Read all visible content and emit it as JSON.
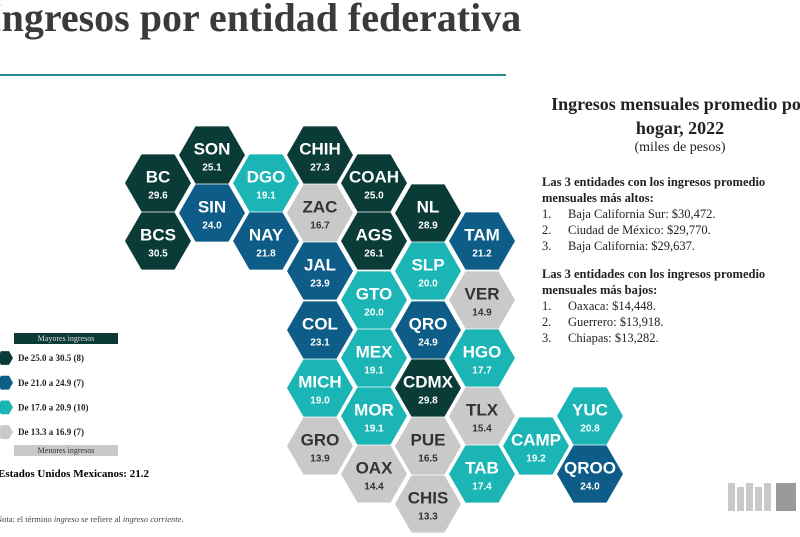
{
  "title": "Ingresos por entidad federativa",
  "tiles": [
    {
      "label": "SON",
      "value": "25.1",
      "color": "#0b3b36"
    },
    {
      "label": "CHIH",
      "value": "27.3",
      "color": "#0b3b36"
    },
    {
      "label": "BC",
      "value": "29.6",
      "color": "#0b3b36"
    },
    {
      "label": "DGO",
      "value": "19.1",
      "color": "#1bb5b5"
    },
    {
      "label": "COAH",
      "value": "25.0",
      "color": "#0b3b36"
    },
    {
      "label": "SIN",
      "value": "24.0",
      "color": "#0e5c88"
    },
    {
      "label": "ZAC",
      "value": "16.7",
      "color": "#c9c9c9"
    },
    {
      "label": "NL",
      "value": "28.9",
      "color": "#0b3b36"
    },
    {
      "label": "BCS",
      "value": "30.5",
      "color": "#0b3b36"
    },
    {
      "label": "NAY",
      "value": "21.8",
      "color": "#0e5c88"
    },
    {
      "label": "AGS",
      "value": "26.1",
      "color": "#0b3b36"
    },
    {
      "label": "TAM",
      "value": "21.2",
      "color": "#0e5c88"
    },
    {
      "label": "JAL",
      "value": "23.9",
      "color": "#0e5c88"
    },
    {
      "label": "SLP",
      "value": "20.0",
      "color": "#1bb5b5"
    },
    {
      "label": "GTO",
      "value": "20.0",
      "color": "#1bb5b5"
    },
    {
      "label": "VER",
      "value": "14.9",
      "color": "#c9c9c9"
    },
    {
      "label": "COL",
      "value": "23.1",
      "color": "#0e5c88"
    },
    {
      "label": "QRO",
      "value": "24.9",
      "color": "#0e5c88"
    },
    {
      "label": "MEX",
      "value": "19.1",
      "color": "#1bb5b5"
    },
    {
      "label": "HGO",
      "value": "17.7",
      "color": "#1bb5b5"
    },
    {
      "label": "MICH",
      "value": "19.0",
      "color": "#1bb5b5"
    },
    {
      "label": "CDMX",
      "value": "29.8",
      "color": "#0b3b36"
    },
    {
      "label": "MOR",
      "value": "19.1",
      "color": "#1bb5b5"
    },
    {
      "label": "TLX",
      "value": "15.4",
      "color": "#c9c9c9"
    },
    {
      "label": "YUC",
      "value": "20.8",
      "color": "#1bb5b5"
    },
    {
      "label": "GRO",
      "value": "13.9",
      "color": "#c9c9c9"
    },
    {
      "label": "PUE",
      "value": "16.5",
      "color": "#c9c9c9"
    },
    {
      "label": "CAMP",
      "value": "19.2",
      "color": "#1bb5b5"
    },
    {
      "label": "OAX",
      "value": "14.4",
      "color": "#c9c9c9"
    },
    {
      "label": "TAB",
      "value": "17.4",
      "color": "#1bb5b5"
    },
    {
      "label": "QROO",
      "value": "24.0",
      "color": "#0e5c88"
    },
    {
      "label": "CHIS",
      "value": "13.3",
      "color": "#c9c9c9"
    }
  ],
  "legend": {
    "top": "Mayores ingresos",
    "bottom": "Menores ingresos",
    "items": [
      {
        "label": "De 25.0 a 30.5 (8)",
        "color": "#0b3b36"
      },
      {
        "label": "De 21.0 a 24.9 (7)",
        "color": "#0e5c88"
      },
      {
        "label": "De 17.0 a 20.9 (10)",
        "color": "#1bb5b5"
      },
      {
        "label": "De 13.3 a 16.9 (7)",
        "color": "#c9c9c9"
      }
    ]
  },
  "national": "Estados Unidos Mexicanos: 21.2",
  "note": [
    "Nota: el término ",
    "ingreso",
    " se refiere al ",
    "ingreso corriente",
    "."
  ],
  "panel": {
    "title_lines": [
      "Ingresos mensuales promedio por",
      "hogar, 2022"
    ],
    "subtitle": "(miles de pesos)",
    "sections": [
      {
        "heading_lines": [
          "Las 3 entidades con los ingresos promedio",
          "mensuales más altos:"
        ],
        "items": [
          {
            "num": "1.",
            "text": "Baja California Sur: $30,472."
          },
          {
            "num": "2.",
            "text": "Ciudad de México: $29,770."
          },
          {
            "num": "3.",
            "text": "Baja California: $29,637."
          }
        ]
      },
      {
        "heading_lines": [
          "Las 3 entidades con los ingresos promedio",
          "mensuales más bajos:"
        ],
        "items": [
          {
            "num": "1.",
            "text": "Oaxaca: $14,448."
          },
          {
            "num": "2.",
            "text": "Guerrero: $13,918."
          },
          {
            "num": "3.",
            "text": "Chiapas: $13,282."
          }
        ]
      }
    ]
  }
}
